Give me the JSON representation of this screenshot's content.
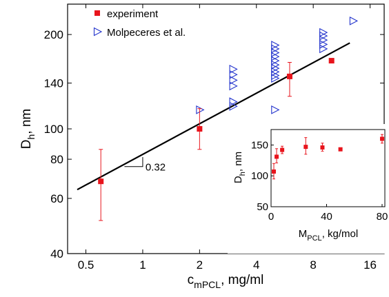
{
  "chart_data": [
    {
      "type": "scatter",
      "xscale": "log",
      "yscale": "log",
      "xlabel": "c",
      "xlabel_sub": "mPCL",
      "xlabel_suffix": ", mg/ml",
      "ylabel": "D",
      "ylabel_sub": "h",
      "ylabel_suffix": ", nm",
      "xlim": [
        0.4,
        19
      ],
      "ylim": [
        40,
        250
      ],
      "xticks": [
        0.5,
        1,
        2,
        4,
        8,
        16
      ],
      "xtick_labels": [
        "0.5",
        "1",
        "2",
        "4",
        "8",
        "16"
      ],
      "yticks": [
        40,
        60,
        80,
        100,
        140,
        200
      ],
      "ytick_labels": [
        "40",
        "60",
        "80",
        "100",
        "140",
        "200"
      ],
      "grid": false,
      "legend_position": "top-left",
      "series": [
        {
          "name": "experiment",
          "marker": "filled-square",
          "color": "#e8141c",
          "points": [
            {
              "x": 0.6,
              "y": 68,
              "lo": 51,
              "hi": 86
            },
            {
              "x": 2.0,
              "y": 100,
              "lo": 86,
              "hi": 116
            },
            {
              "x": 6.0,
              "y": 147,
              "lo": 127,
              "hi": 163
            },
            {
              "x": 10.0,
              "y": 165,
              "lo": 165,
              "hi": 165
            }
          ]
        },
        {
          "name": "Molpeceres et al.",
          "marker": "open-right-triangle",
          "color": "#2233cc",
          "points": [
            {
              "x": 2.0,
              "y": 115
            },
            {
              "x": 3.0,
              "y": 155
            },
            {
              "x": 3.0,
              "y": 149
            },
            {
              "x": 3.0,
              "y": 143
            },
            {
              "x": 3.0,
              "y": 137
            },
            {
              "x": 3.0,
              "y": 122
            },
            {
              "x": 3.0,
              "y": 118
            },
            {
              "x": 5.0,
              "y": 185
            },
            {
              "x": 5.0,
              "y": 180
            },
            {
              "x": 5.0,
              "y": 175
            },
            {
              "x": 5.0,
              "y": 170
            },
            {
              "x": 5.0,
              "y": 165
            },
            {
              "x": 5.0,
              "y": 160
            },
            {
              "x": 5.0,
              "y": 156
            },
            {
              "x": 5.0,
              "y": 152
            },
            {
              "x": 5.0,
              "y": 148
            },
            {
              "x": 5.0,
              "y": 145
            },
            {
              "x": 5.0,
              "y": 115
            },
            {
              "x": 9.0,
              "y": 203
            },
            {
              "x": 9.0,
              "y": 198
            },
            {
              "x": 9.0,
              "y": 192
            },
            {
              "x": 9.0,
              "y": 186
            },
            {
              "x": 9.0,
              "y": 180
            },
            {
              "x": 13.0,
              "y": 221
            }
          ]
        }
      ],
      "fit_line": {
        "x0": 0.45,
        "y0": 64,
        "x1": 12.5,
        "y1": 188
      },
      "slope_annotation": {
        "text": "0.32",
        "x0": 0.8,
        "x1": 1.0,
        "y0": 75.8,
        "y1": 81.3
      }
    },
    {
      "type": "scatter",
      "xscale": "linear",
      "yscale": "linear",
      "xlabel": "M",
      "xlabel_sub": "PCL",
      "xlabel_suffix": ", kg/mol",
      "ylabel": "D",
      "ylabel_sub": "h",
      "ylabel_suffix": ", nm",
      "xlim": [
        0,
        82
      ],
      "ylim": [
        50,
        175
      ],
      "xticks": [
        0,
        40,
        80
      ],
      "xtick_labels": [
        "0",
        "40",
        "80"
      ],
      "yticks": [
        50,
        100,
        150
      ],
      "ytick_labels": [
        "50",
        "100",
        "150"
      ],
      "grid": false,
      "series": [
        {
          "name": "",
          "marker": "filled-square",
          "color": "#e8141c",
          "points": [
            {
              "x": 2,
              "y": 107,
              "lo": 95,
              "hi": 120
            },
            {
              "x": 4,
              "y": 131,
              "lo": 121,
              "hi": 144
            },
            {
              "x": 8,
              "y": 142,
              "lo": 136,
              "hi": 148
            },
            {
              "x": 25,
              "y": 147,
              "lo": 135,
              "hi": 162
            },
            {
              "x": 37,
              "y": 146,
              "lo": 140,
              "hi": 153
            },
            {
              "x": 50,
              "y": 143,
              "lo": 143,
              "hi": 143
            },
            {
              "x": 80,
              "y": 160,
              "lo": 153,
              "hi": 167
            }
          ]
        }
      ]
    }
  ]
}
